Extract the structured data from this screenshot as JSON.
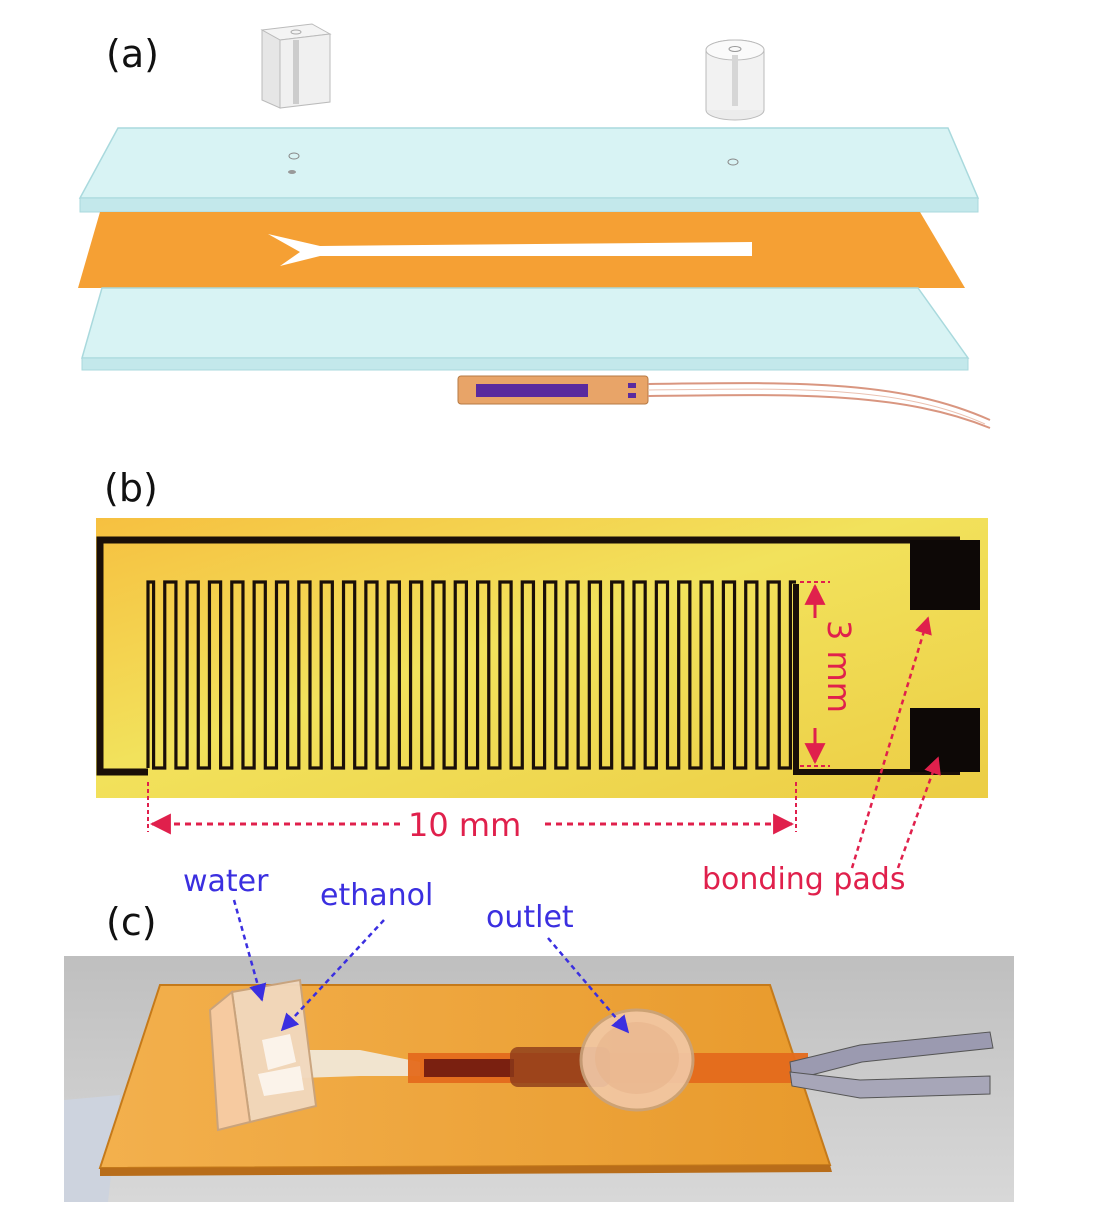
{
  "panels": {
    "a": {
      "label": "(a)"
    },
    "b": {
      "label": "(b)",
      "dim_height": "3 mm",
      "dim_length": "10 mm",
      "pads_label": "bonding pads",
      "meander_fingers": 58
    },
    "c": {
      "label": "(c)",
      "water": "water",
      "ethanol": "ethanol",
      "outlet": "outlet"
    }
  },
  "colors": {
    "glass": "#d8f3f4",
    "kapton": "#f5a034",
    "pcb_yellow": "#eedd55",
    "trace": "#1a0f08",
    "annot_red": "#e0204c",
    "annot_blue": "#3b2fe0",
    "heater": "#5a2a9e"
  }
}
